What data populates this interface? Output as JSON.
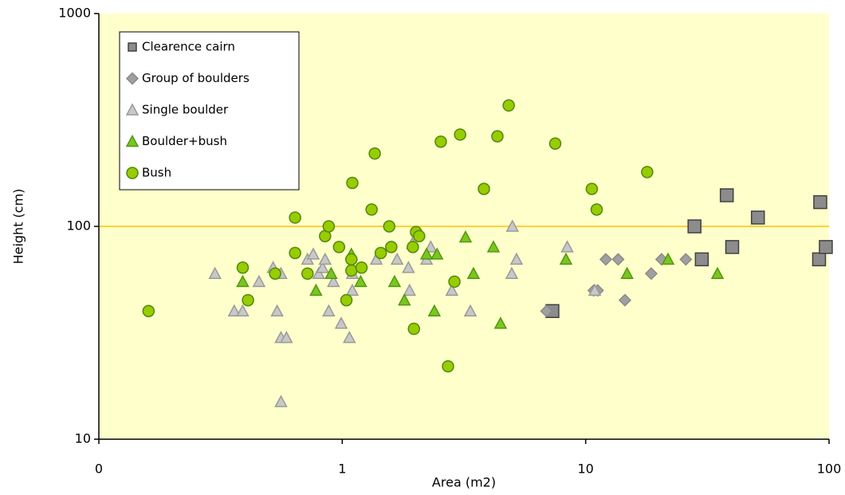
{
  "chart_data": {
    "type": "scatter",
    "xlabel": "Area (m2)",
    "ylabel": "Height (cm)",
    "xscale": "log",
    "yscale": "log",
    "xlim": [
      0.1,
      100
    ],
    "ylim": [
      10,
      1000
    ],
    "xticks": [
      {
        "value": 0.1,
        "label": "0"
      },
      1,
      10,
      100
    ],
    "yticks": [
      10,
      100,
      1000
    ],
    "grid": true,
    "grid_color": "#ffc000",
    "background": "#ffffcc",
    "legend": "upper left",
    "series": [
      {
        "name": "Clearence cairn",
        "marker": "square",
        "color": "#8c8c8c",
        "edge": "#404040",
        "x": [
          7.3,
          28,
          30,
          38,
          40,
          51,
          91,
          92,
          97
        ],
        "values": [
          40,
          100,
          70,
          140,
          80,
          110,
          70,
          130,
          80
        ]
      },
      {
        "name": "Group of boulders",
        "marker": "diamond",
        "color": "#a0a0a0",
        "edge": "#8a8a8a",
        "x": [
          6.9,
          10.8,
          11.2,
          12.1,
          13.6,
          14.5,
          18.6,
          20.5,
          25.8
        ],
        "values": [
          40,
          50,
          50,
          70,
          70,
          45,
          60,
          70,
          70
        ]
      },
      {
        "name": "Single boulder",
        "marker": "triangle",
        "color": "#c8c8c8",
        "edge": "#9a9a9a",
        "x": [
          0.3,
          0.36,
          0.39,
          0.455,
          0.52,
          0.54,
          0.56,
          0.56,
          0.56,
          0.59,
          0.72,
          0.76,
          0.8,
          0.83,
          0.85,
          0.88,
          0.92,
          0.99,
          1.07,
          1.1,
          1.1,
          1.38,
          1.68,
          1.87,
          1.89,
          1.94,
          2.22,
          2.31,
          2.82,
          3.36,
          4.97,
          5.0,
          5.2,
          8.4,
          10.9
        ],
        "values": [
          60,
          40,
          40,
          55,
          64,
          40,
          60,
          30,
          15,
          30,
          70,
          74,
          60,
          64,
          70,
          40,
          55,
          35,
          30,
          50,
          60,
          70,
          70,
          64,
          50,
          83,
          70,
          80,
          50,
          40,
          60,
          100,
          70,
          80,
          50
        ]
      },
      {
        "name": "Boulder+bush",
        "marker": "triangle",
        "color": "#7cc520",
        "edge": "#4f9a10",
        "x": [
          0.39,
          0.78,
          0.9,
          1.09,
          1.19,
          1.64,
          1.8,
          2.22,
          2.45,
          2.39,
          3.21,
          3.46,
          4.18,
          4.47,
          8.3,
          14.8,
          21.8,
          34.8
        ],
        "values": [
          55,
          50,
          60,
          74,
          55,
          55,
          45,
          74,
          74,
          40,
          89,
          60,
          80,
          35,
          70,
          60,
          70,
          60
        ]
      },
      {
        "name": "Bush",
        "marker": "circle",
        "color": "#99cc00",
        "edge": "#4f8a10",
        "x": [
          0.16,
          0.39,
          0.41,
          0.53,
          0.64,
          0.64,
          0.72,
          0.85,
          0.88,
          0.97,
          1.04,
          1.1,
          1.09,
          1.09,
          1.2,
          1.32,
          1.36,
          1.44,
          1.56,
          1.59,
          2.01,
          2.07,
          1.95,
          1.97,
          2.54,
          2.72,
          2.89,
          3.05,
          3.82,
          4.34,
          4.83,
          7.5,
          10.6,
          11.1,
          17.9
        ],
        "values": [
          40,
          64,
          45,
          60,
          75,
          110,
          60,
          90,
          100,
          80,
          45,
          160,
          70,
          62,
          64,
          120,
          220,
          75,
          100,
          80,
          94,
          90,
          80,
          33,
          250,
          22,
          55,
          270,
          150,
          265,
          370,
          245,
          150,
          120,
          180
        ]
      }
    ]
  }
}
